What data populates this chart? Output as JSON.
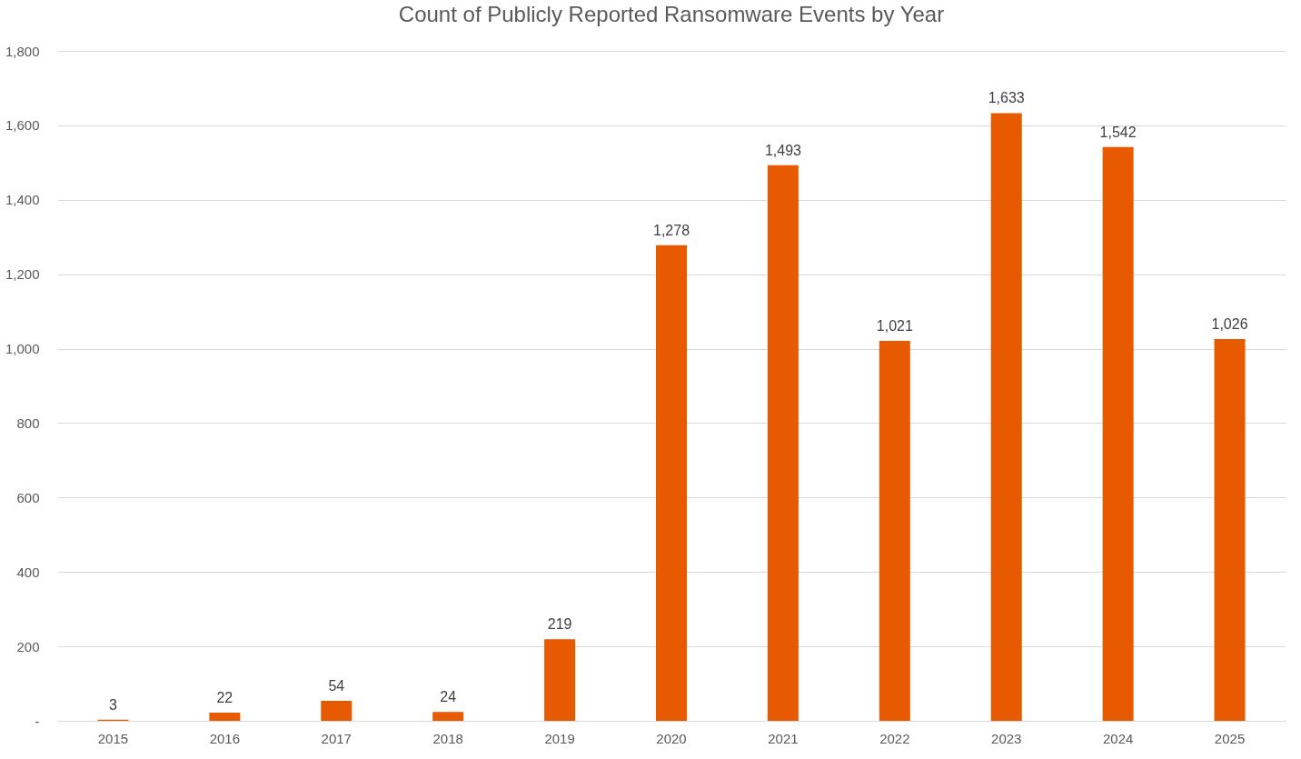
{
  "chart_data": {
    "type": "bar",
    "title": "Count of Publicly Reported Ransomware Events by Year",
    "categories": [
      "2015",
      "2016",
      "2017",
      "2018",
      "2019",
      "2020",
      "2021",
      "2022",
      "2023",
      "2024",
      "2025"
    ],
    "values": [
      3,
      22,
      54,
      24,
      219,
      1278,
      1493,
      1021,
      1633,
      1542,
      1026
    ],
    "value_labels": [
      "3",
      "22",
      "54",
      "24",
      "219",
      "1,278",
      "1,493",
      "1,021",
      "1,633",
      "1,542",
      "1,026"
    ],
    "color": "#e85a00",
    "ylim": [
      0,
      1800
    ],
    "yticks": [
      {
        "value": 0,
        "label": "-"
      },
      200,
      400,
      600,
      800,
      {
        "value": 1000,
        "label": "1,000"
      },
      {
        "value": 1200,
        "label": "1,200"
      },
      {
        "value": 1400,
        "label": "1,400"
      },
      {
        "value": 1600,
        "label": "1,600"
      },
      {
        "value": 1800,
        "label": "1,800"
      }
    ],
    "grid": "y"
  }
}
